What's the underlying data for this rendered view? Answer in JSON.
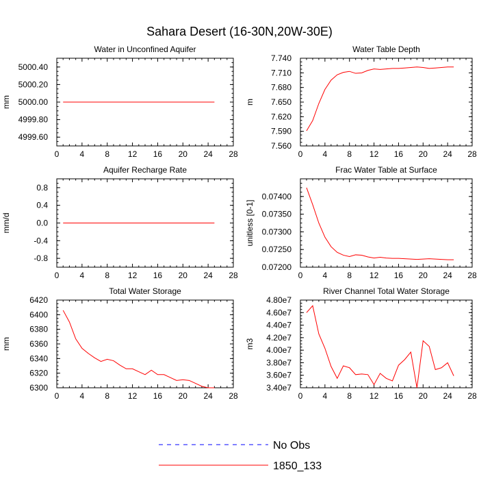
{
  "figure": {
    "title": "Sahara Desert (16-30N,20W-30E)",
    "series_color": "#ff0000",
    "legend_dash_color": "#0000ff"
  },
  "legend": {
    "placement": "bottom-center",
    "entries": [
      {
        "label": "No Obs",
        "color": "#0000ff",
        "style": "dashed"
      },
      {
        "label": "1850_133",
        "color": "#ff0000",
        "style": "solid"
      }
    ]
  },
  "chart_data": [
    {
      "type": "line",
      "title": "Water in Unconfined Aquifer",
      "xlabel": "",
      "ylabel": "mm",
      "xlim": [
        0,
        28
      ],
      "ylim": [
        4999.5,
        5000.5
      ],
      "xticks": [
        0,
        4,
        8,
        12,
        16,
        20,
        24,
        28
      ],
      "xticklabels": [
        "0",
        "4",
        "8",
        "12",
        "16",
        "20",
        "24",
        "28"
      ],
      "yticks": [
        4999.6,
        4999.8,
        5000.0,
        5000.2,
        5000.4
      ],
      "yticklabels": [
        "4999.60",
        "4999.80",
        "5000.00",
        "5000.20",
        "5000.40"
      ],
      "grid": false,
      "series": [
        {
          "name": "1850_133",
          "color": "#ff0000",
          "x": [
            1,
            25
          ],
          "y": [
            5000.0,
            5000.0
          ]
        }
      ]
    },
    {
      "type": "line",
      "title": "Water Table Depth",
      "xlabel": "",
      "ylabel": "m",
      "xlim": [
        0,
        28
      ],
      "ylim": [
        7.56,
        7.74
      ],
      "xticks": [
        0,
        4,
        8,
        12,
        16,
        20,
        24,
        28
      ],
      "xticklabels": [
        "0",
        "4",
        "8",
        "12",
        "16",
        "20",
        "24",
        "28"
      ],
      "yticks": [
        7.56,
        7.59,
        7.62,
        7.65,
        7.68,
        7.71,
        7.74
      ],
      "yticklabels": [
        "7.560",
        "7.590",
        "7.620",
        "7.650",
        "7.680",
        "7.710",
        "7.740"
      ],
      "grid": false,
      "series": [
        {
          "name": "1850_133",
          "color": "#ff0000",
          "x": [
            1,
            2,
            3,
            4,
            5,
            6,
            7,
            8,
            9,
            10,
            11,
            12,
            13,
            14,
            15,
            16,
            17,
            18,
            19,
            20,
            21,
            22,
            23,
            24,
            25
          ],
          "y": [
            7.591,
            7.612,
            7.647,
            7.676,
            7.695,
            7.706,
            7.711,
            7.713,
            7.709,
            7.71,
            7.715,
            7.718,
            7.717,
            7.718,
            7.719,
            7.719,
            7.72,
            7.721,
            7.722,
            7.721,
            7.719,
            7.72,
            7.721,
            7.722,
            7.722
          ]
        }
      ]
    },
    {
      "type": "line",
      "title": "Aquifer Recharge Rate",
      "xlabel": "",
      "ylabel": "mm/d",
      "xlim": [
        0,
        28
      ],
      "ylim": [
        -1.0,
        1.0
      ],
      "xticks": [
        0,
        4,
        8,
        12,
        16,
        20,
        24,
        28
      ],
      "xticklabels": [
        "0",
        "4",
        "8",
        "12",
        "16",
        "20",
        "24",
        "28"
      ],
      "yticks": [
        -0.8,
        -0.4,
        0.0,
        0.4,
        0.8
      ],
      "yticklabels": [
        "-0.8",
        "-0.4",
        "0.0",
        "0.4",
        "0.8"
      ],
      "grid": false,
      "series": [
        {
          "name": "1850_133",
          "color": "#ff0000",
          "x": [
            1,
            25
          ],
          "y": [
            0.0,
            0.0
          ]
        }
      ]
    },
    {
      "type": "line",
      "title": "Frac Water Table at Surface",
      "xlabel": "",
      "ylabel": "unitless [0-1]",
      "xlim": [
        0,
        28
      ],
      "ylim": [
        0.072,
        0.0745
      ],
      "xticks": [
        0,
        4,
        8,
        12,
        16,
        20,
        24,
        28
      ],
      "xticklabels": [
        "0",
        "4",
        "8",
        "12",
        "16",
        "20",
        "24",
        "28"
      ],
      "yticks": [
        0.072,
        0.0725,
        0.073,
        0.0735,
        0.074
      ],
      "yticklabels": [
        "0.07200",
        "0.07250",
        "0.07300",
        "0.07350",
        "0.07400"
      ],
      "grid": false,
      "series": [
        {
          "name": "1850_133",
          "color": "#ff0000",
          "x": [
            1,
            2,
            3,
            4,
            5,
            6,
            7,
            8,
            9,
            10,
            11,
            12,
            13,
            14,
            15,
            16,
            17,
            18,
            19,
            20,
            21,
            22,
            23,
            24,
            25
          ],
          "y": [
            0.07425,
            0.07377,
            0.07325,
            0.07285,
            0.07258,
            0.07242,
            0.07234,
            0.0723,
            0.07235,
            0.07234,
            0.07229,
            0.07226,
            0.07228,
            0.07226,
            0.07225,
            0.07225,
            0.07224,
            0.07223,
            0.07222,
            0.07223,
            0.07224,
            0.07223,
            0.07222,
            0.07221,
            0.07221
          ]
        }
      ]
    },
    {
      "type": "line",
      "title": "Total Water Storage",
      "xlabel": "",
      "ylabel": "mm",
      "xlim": [
        0,
        28
      ],
      "ylim": [
        6300,
        6420
      ],
      "xticks": [
        0,
        4,
        8,
        12,
        16,
        20,
        24,
        28
      ],
      "xticklabels": [
        "0",
        "4",
        "8",
        "12",
        "16",
        "20",
        "24",
        "28"
      ],
      "yticks": [
        6300,
        6320,
        6340,
        6360,
        6380,
        6400,
        6420
      ],
      "yticklabels": [
        "6300",
        "6320",
        "6340",
        "6360",
        "6380",
        "6400",
        "6420"
      ],
      "grid": false,
      "series": [
        {
          "name": "1850_133",
          "color": "#ff0000",
          "x": [
            1,
            2,
            3,
            4,
            5,
            6,
            7,
            8,
            9,
            10,
            11,
            12,
            13,
            14,
            15,
            16,
            17,
            18,
            19,
            20,
            21,
            22,
            23,
            24,
            25
          ],
          "y": [
            6406,
            6390,
            6367,
            6354,
            6347,
            6341,
            6336,
            6339,
            6337,
            6331,
            6326,
            6326,
            6322,
            6318,
            6324,
            6318,
            6318,
            6314,
            6310,
            6311,
            6310,
            6306,
            6302,
            6300,
            6300
          ]
        }
      ]
    },
    {
      "type": "line",
      "title": "River Channel Total Water Storage",
      "xlabel": "",
      "ylabel": "m3",
      "xlim": [
        0,
        28
      ],
      "ylim": [
        34000000.0,
        48000000.0
      ],
      "xticks": [
        0,
        4,
        8,
        12,
        16,
        20,
        24,
        28
      ],
      "xticklabels": [
        "0",
        "4",
        "8",
        "12",
        "16",
        "20",
        "24",
        "28"
      ],
      "yticks": [
        34000000.0,
        36000000.0,
        38000000.0,
        40000000.0,
        42000000.0,
        44000000.0,
        46000000.0,
        48000000.0
      ],
      "yticklabels": [
        "3.40e7",
        "3.60e7",
        "3.80e7",
        "4.00e7",
        "4.20e7",
        "4.40e7",
        "4.60e7",
        "4.80e7"
      ],
      "grid": false,
      "series": [
        {
          "name": "1850_133",
          "color": "#ff0000",
          "x": [
            1,
            2,
            3,
            4,
            5,
            6,
            7,
            8,
            9,
            10,
            11,
            12,
            13,
            14,
            15,
            16,
            17,
            18,
            19,
            20,
            21,
            22,
            23,
            24,
            25
          ],
          "y": [
            46000000.0,
            47100000.0,
            42600000.0,
            40300000.0,
            37400000.0,
            35500000.0,
            37500000.0,
            37200000.0,
            36100000.0,
            36200000.0,
            36100000.0,
            34500000.0,
            36300000.0,
            35500000.0,
            35100000.0,
            37600000.0,
            38500000.0,
            39700000.0,
            34000000.0,
            41500000.0,
            40600000.0,
            36900000.0,
            37200000.0,
            38000000.0,
            35900000.0
          ]
        }
      ]
    }
  ]
}
